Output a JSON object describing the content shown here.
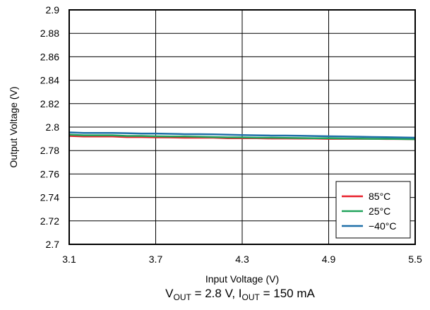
{
  "chart_data": {
    "type": "line",
    "title": "",
    "xlabel": "Input Voltage (V)",
    "ylabel": "Output Voltage (V)",
    "xlim": [
      3.1,
      5.5
    ],
    "ylim": [
      2.7,
      2.9
    ],
    "x_ticks": [
      3.1,
      3.7,
      4.3,
      4.9,
      5.5
    ],
    "x_tick_labels": [
      "3.1",
      "3.7",
      "4.3",
      "4.9",
      "5.5"
    ],
    "y_ticks": [
      2.7,
      2.72,
      2.74,
      2.76,
      2.78,
      2.8,
      2.82,
      2.84,
      2.86,
      2.88,
      2.9
    ],
    "y_tick_labels": [
      "2.7",
      "2.72",
      "2.74",
      "2.76",
      "2.78",
      "2.8",
      "2.82",
      "2.84",
      "2.86",
      "2.88",
      "2.9"
    ],
    "grid": true,
    "legend_position": "bottom-right",
    "caption": {
      "v_main": "V",
      "v_sub": "OUT",
      "mid": " = 2.8 V, I",
      "i_sub": "OUT",
      "end": " = 150 mA"
    },
    "series": [
      {
        "name": "85°C",
        "color": "#e8202a",
        "x": [
          3.1,
          3.2,
          3.3,
          3.4,
          3.5,
          3.6,
          3.7,
          3.8,
          3.9,
          4.0,
          4.1,
          4.2,
          4.3,
          4.4,
          4.5,
          4.6,
          4.7,
          4.8,
          4.9,
          5.0,
          5.1,
          5.2,
          5.3,
          5.4,
          5.5
        ],
        "values": [
          2.7925,
          2.792,
          2.792,
          2.792,
          2.7915,
          2.7915,
          2.7913,
          2.7912,
          2.791,
          2.791,
          2.791,
          2.7905,
          2.7905,
          2.7905,
          2.7903,
          2.7903,
          2.7902,
          2.7902,
          2.79,
          2.79,
          2.79,
          2.79,
          2.7898,
          2.7898,
          2.7897
        ]
      },
      {
        "name": "25°C",
        "color": "#21a35b",
        "x": [
          3.1,
          3.2,
          3.3,
          3.4,
          3.5,
          3.6,
          3.7,
          3.8,
          3.9,
          4.0,
          4.1,
          4.2,
          4.3,
          4.4,
          4.5,
          4.6,
          4.7,
          4.8,
          4.9,
          5.0,
          5.1,
          5.2,
          5.3,
          5.4,
          5.5
        ],
        "values": [
          2.7935,
          2.793,
          2.793,
          2.793,
          2.7925,
          2.7925,
          2.7922,
          2.792,
          2.792,
          2.7918,
          2.7915,
          2.7913,
          2.7912,
          2.791,
          2.791,
          2.7908,
          2.7907,
          2.7905,
          2.7905,
          2.7903,
          2.7902,
          2.79,
          2.79,
          2.7898,
          2.7897
        ]
      },
      {
        "name": "−40°C",
        "color": "#1f6fa8",
        "x": [
          3.1,
          3.2,
          3.3,
          3.4,
          3.5,
          3.6,
          3.7,
          3.8,
          3.9,
          4.0,
          4.1,
          4.2,
          4.3,
          4.4,
          4.5,
          4.6,
          4.7,
          4.8,
          4.9,
          5.0,
          5.1,
          5.2,
          5.3,
          5.4,
          5.5
        ],
        "values": [
          2.7955,
          2.795,
          2.795,
          2.795,
          2.7948,
          2.7945,
          2.7945,
          2.7943,
          2.794,
          2.794,
          2.7938,
          2.7935,
          2.7932,
          2.793,
          2.7928,
          2.7928,
          2.7926,
          2.7924,
          2.7922,
          2.792,
          2.7918,
          2.7916,
          2.7914,
          2.7912,
          2.791
        ]
      }
    ]
  }
}
